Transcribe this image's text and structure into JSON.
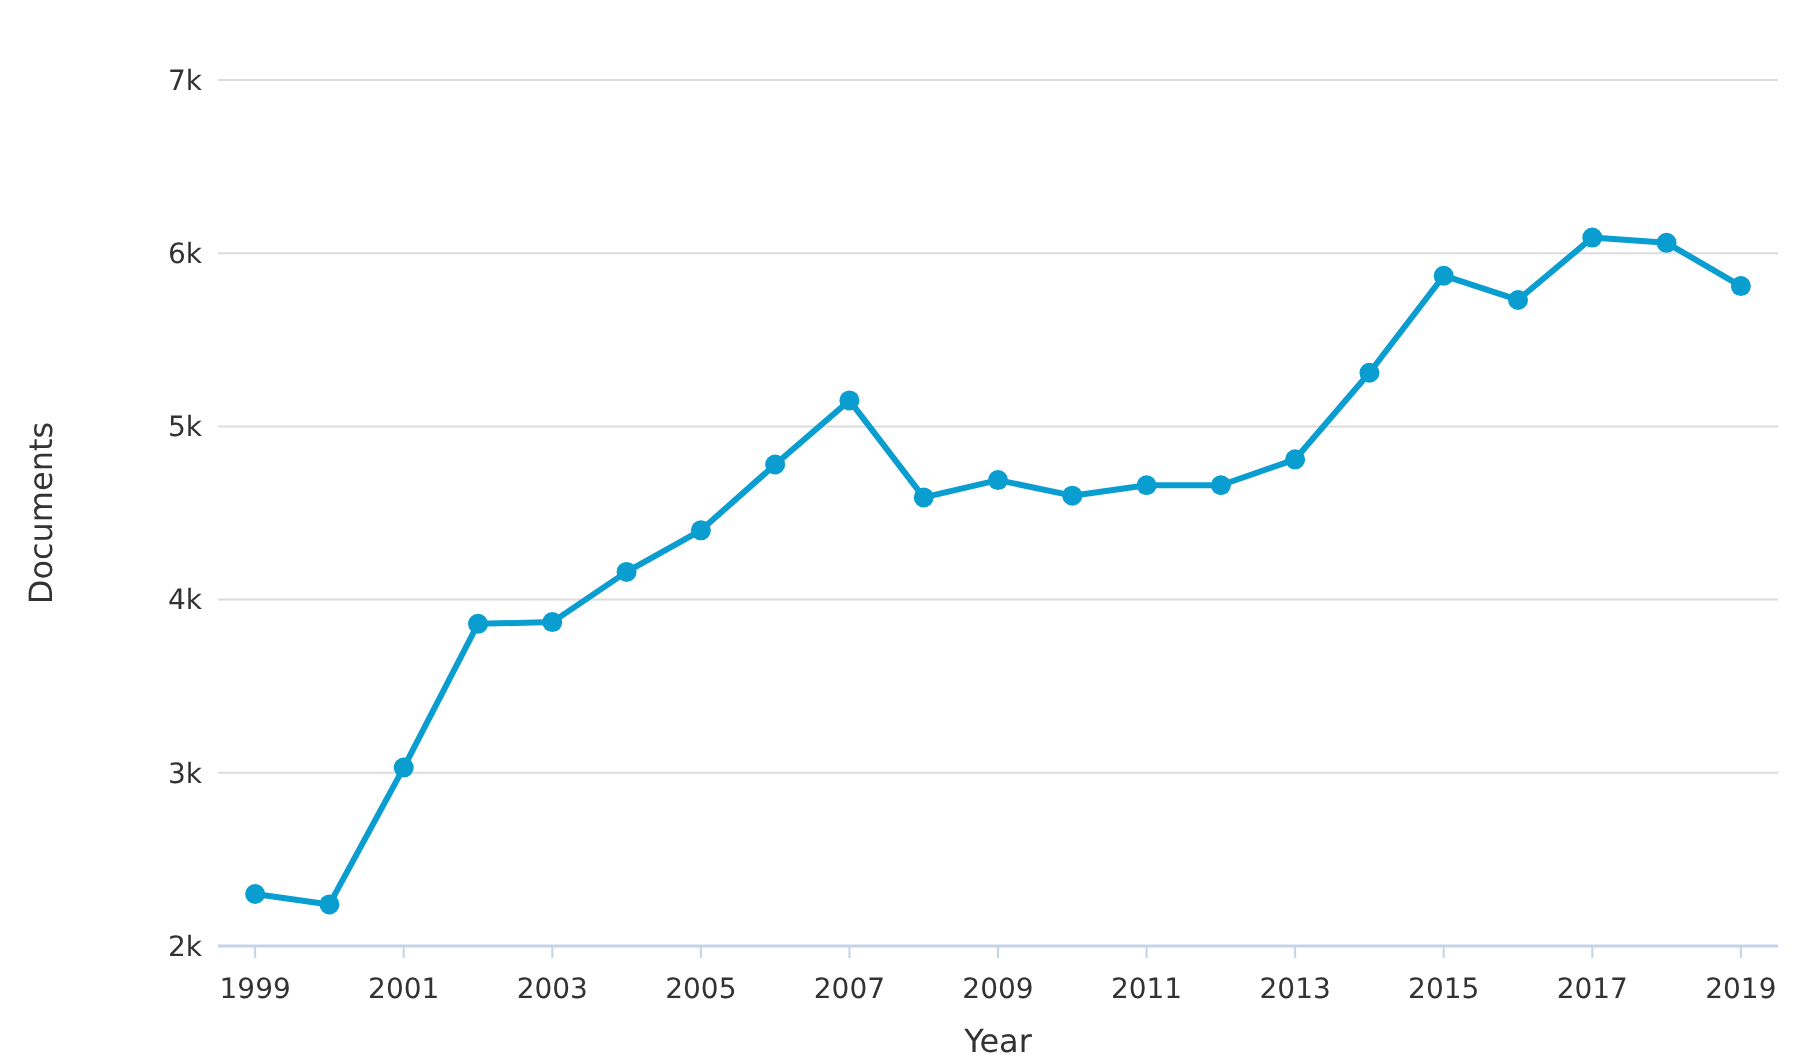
{
  "chart_data": {
    "type": "line",
    "xlabel": "Year",
    "ylabel": "Documents",
    "x": [
      1999,
      2000,
      2001,
      2002,
      2003,
      2004,
      2005,
      2006,
      2007,
      2008,
      2009,
      2010,
      2011,
      2012,
      2013,
      2014,
      2015,
      2016,
      2017,
      2018,
      2019
    ],
    "series": [
      {
        "color": "#0a9ed0",
        "values": [
          2300,
          2240,
          3030,
          3860,
          3870,
          4160,
          4400,
          4780,
          5150,
          4590,
          4690,
          4600,
          4660,
          4660,
          4810,
          5310,
          5870,
          5730,
          6090,
          6060,
          5810
        ]
      }
    ],
    "xlim": [
      1998.5,
      2019.5
    ],
    "xticks": [
      1999,
      2001,
      2003,
      2005,
      2007,
      2009,
      2011,
      2013,
      2015,
      2017,
      2019
    ],
    "ylim": [
      2000,
      7000
    ],
    "yticks": [
      {
        "value": 2000,
        "label": "2k"
      },
      {
        "value": 3000,
        "label": "3k"
      },
      {
        "value": 4000,
        "label": "4k"
      },
      {
        "value": 5000,
        "label": "5k"
      },
      {
        "value": 6000,
        "label": "6k"
      },
      {
        "value": 7000,
        "label": "7k"
      }
    ],
    "grid": "y",
    "marker": "circle",
    "line_style": "solid"
  }
}
